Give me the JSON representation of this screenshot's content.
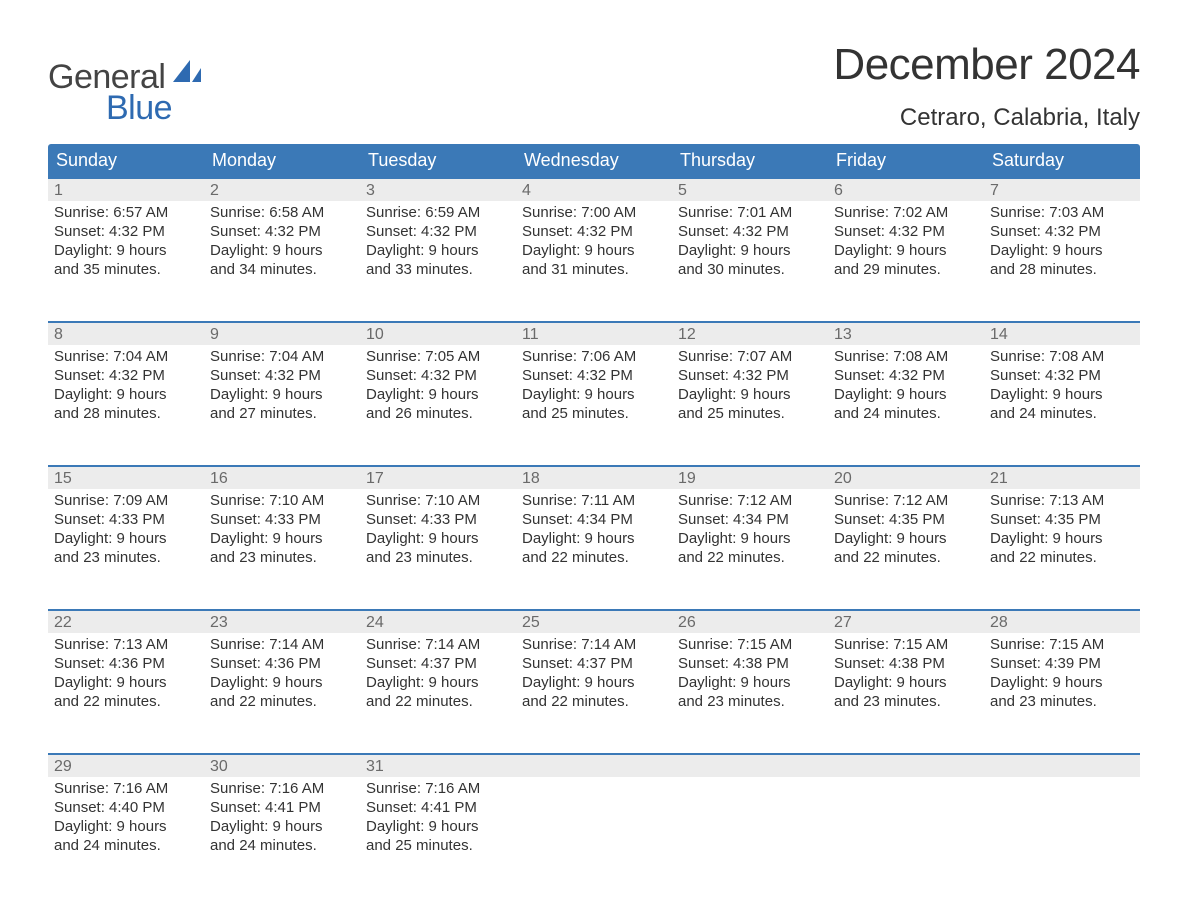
{
  "logo": {
    "word1": "General",
    "word2": "Blue"
  },
  "colors": {
    "header_bg": "#3b79b7",
    "header_text": "#ffffff",
    "row_divider": "#3b79b7",
    "daynum_bg": "#ececec",
    "daynum_text": "#6a6a6a",
    "body_text": "#333333",
    "logo_gray": "#444444",
    "logo_blue": "#2e6ab1",
    "page_bg": "#ffffff"
  },
  "title": "December 2024",
  "location": "Cetraro, Calabria, Italy",
  "weekdays": [
    "Sunday",
    "Monday",
    "Tuesday",
    "Wednesday",
    "Thursday",
    "Friday",
    "Saturday"
  ],
  "weeks": [
    [
      {
        "n": "1",
        "sunrise": "Sunrise: 6:57 AM",
        "sunset": "Sunset: 4:32 PM",
        "d1": "Daylight: 9 hours",
        "d2": "and 35 minutes."
      },
      {
        "n": "2",
        "sunrise": "Sunrise: 6:58 AM",
        "sunset": "Sunset: 4:32 PM",
        "d1": "Daylight: 9 hours",
        "d2": "and 34 minutes."
      },
      {
        "n": "3",
        "sunrise": "Sunrise: 6:59 AM",
        "sunset": "Sunset: 4:32 PM",
        "d1": "Daylight: 9 hours",
        "d2": "and 33 minutes."
      },
      {
        "n": "4",
        "sunrise": "Sunrise: 7:00 AM",
        "sunset": "Sunset: 4:32 PM",
        "d1": "Daylight: 9 hours",
        "d2": "and 31 minutes."
      },
      {
        "n": "5",
        "sunrise": "Sunrise: 7:01 AM",
        "sunset": "Sunset: 4:32 PM",
        "d1": "Daylight: 9 hours",
        "d2": "and 30 minutes."
      },
      {
        "n": "6",
        "sunrise": "Sunrise: 7:02 AM",
        "sunset": "Sunset: 4:32 PM",
        "d1": "Daylight: 9 hours",
        "d2": "and 29 minutes."
      },
      {
        "n": "7",
        "sunrise": "Sunrise: 7:03 AM",
        "sunset": "Sunset: 4:32 PM",
        "d1": "Daylight: 9 hours",
        "d2": "and 28 minutes."
      }
    ],
    [
      {
        "n": "8",
        "sunrise": "Sunrise: 7:04 AM",
        "sunset": "Sunset: 4:32 PM",
        "d1": "Daylight: 9 hours",
        "d2": "and 28 minutes."
      },
      {
        "n": "9",
        "sunrise": "Sunrise: 7:04 AM",
        "sunset": "Sunset: 4:32 PM",
        "d1": "Daylight: 9 hours",
        "d2": "and 27 minutes."
      },
      {
        "n": "10",
        "sunrise": "Sunrise: 7:05 AM",
        "sunset": "Sunset: 4:32 PM",
        "d1": "Daylight: 9 hours",
        "d2": "and 26 minutes."
      },
      {
        "n": "11",
        "sunrise": "Sunrise: 7:06 AM",
        "sunset": "Sunset: 4:32 PM",
        "d1": "Daylight: 9 hours",
        "d2": "and 25 minutes."
      },
      {
        "n": "12",
        "sunrise": "Sunrise: 7:07 AM",
        "sunset": "Sunset: 4:32 PM",
        "d1": "Daylight: 9 hours",
        "d2": "and 25 minutes."
      },
      {
        "n": "13",
        "sunrise": "Sunrise: 7:08 AM",
        "sunset": "Sunset: 4:32 PM",
        "d1": "Daylight: 9 hours",
        "d2": "and 24 minutes."
      },
      {
        "n": "14",
        "sunrise": "Sunrise: 7:08 AM",
        "sunset": "Sunset: 4:32 PM",
        "d1": "Daylight: 9 hours",
        "d2": "and 24 minutes."
      }
    ],
    [
      {
        "n": "15",
        "sunrise": "Sunrise: 7:09 AM",
        "sunset": "Sunset: 4:33 PM",
        "d1": "Daylight: 9 hours",
        "d2": "and 23 minutes."
      },
      {
        "n": "16",
        "sunrise": "Sunrise: 7:10 AM",
        "sunset": "Sunset: 4:33 PM",
        "d1": "Daylight: 9 hours",
        "d2": "and 23 minutes."
      },
      {
        "n": "17",
        "sunrise": "Sunrise: 7:10 AM",
        "sunset": "Sunset: 4:33 PM",
        "d1": "Daylight: 9 hours",
        "d2": "and 23 minutes."
      },
      {
        "n": "18",
        "sunrise": "Sunrise: 7:11 AM",
        "sunset": "Sunset: 4:34 PM",
        "d1": "Daylight: 9 hours",
        "d2": "and 22 minutes."
      },
      {
        "n": "19",
        "sunrise": "Sunrise: 7:12 AM",
        "sunset": "Sunset: 4:34 PM",
        "d1": "Daylight: 9 hours",
        "d2": "and 22 minutes."
      },
      {
        "n": "20",
        "sunrise": "Sunrise: 7:12 AM",
        "sunset": "Sunset: 4:35 PM",
        "d1": "Daylight: 9 hours",
        "d2": "and 22 minutes."
      },
      {
        "n": "21",
        "sunrise": "Sunrise: 7:13 AM",
        "sunset": "Sunset: 4:35 PM",
        "d1": "Daylight: 9 hours",
        "d2": "and 22 minutes."
      }
    ],
    [
      {
        "n": "22",
        "sunrise": "Sunrise: 7:13 AM",
        "sunset": "Sunset: 4:36 PM",
        "d1": "Daylight: 9 hours",
        "d2": "and 22 minutes."
      },
      {
        "n": "23",
        "sunrise": "Sunrise: 7:14 AM",
        "sunset": "Sunset: 4:36 PM",
        "d1": "Daylight: 9 hours",
        "d2": "and 22 minutes."
      },
      {
        "n": "24",
        "sunrise": "Sunrise: 7:14 AM",
        "sunset": "Sunset: 4:37 PM",
        "d1": "Daylight: 9 hours",
        "d2": "and 22 minutes."
      },
      {
        "n": "25",
        "sunrise": "Sunrise: 7:14 AM",
        "sunset": "Sunset: 4:37 PM",
        "d1": "Daylight: 9 hours",
        "d2": "and 22 minutes."
      },
      {
        "n": "26",
        "sunrise": "Sunrise: 7:15 AM",
        "sunset": "Sunset: 4:38 PM",
        "d1": "Daylight: 9 hours",
        "d2": "and 23 minutes."
      },
      {
        "n": "27",
        "sunrise": "Sunrise: 7:15 AM",
        "sunset": "Sunset: 4:38 PM",
        "d1": "Daylight: 9 hours",
        "d2": "and 23 minutes."
      },
      {
        "n": "28",
        "sunrise": "Sunrise: 7:15 AM",
        "sunset": "Sunset: 4:39 PM",
        "d1": "Daylight: 9 hours",
        "d2": "and 23 minutes."
      }
    ],
    [
      {
        "n": "29",
        "sunrise": "Sunrise: 7:16 AM",
        "sunset": "Sunset: 4:40 PM",
        "d1": "Daylight: 9 hours",
        "d2": "and 24 minutes."
      },
      {
        "n": "30",
        "sunrise": "Sunrise: 7:16 AM",
        "sunset": "Sunset: 4:41 PM",
        "d1": "Daylight: 9 hours",
        "d2": "and 24 minutes."
      },
      {
        "n": "31",
        "sunrise": "Sunrise: 7:16 AM",
        "sunset": "Sunset: 4:41 PM",
        "d1": "Daylight: 9 hours",
        "d2": "and 25 minutes."
      },
      null,
      null,
      null,
      null
    ]
  ]
}
